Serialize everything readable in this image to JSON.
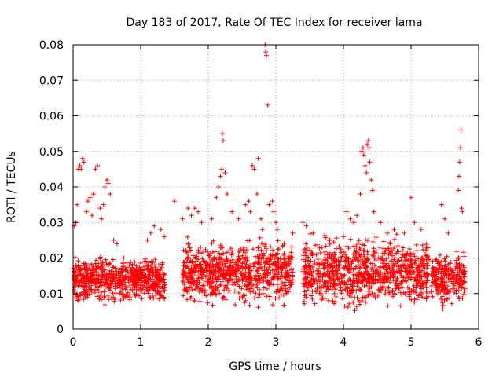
{
  "chart_data": {
    "type": "scatter",
    "title": "Day 183 of 2017, Rate Of TEC Index for receiver lama",
    "xlabel": "GPS time / hours",
    "ylabel": "ROTI / TECUs",
    "xlim": [
      0,
      6
    ],
    "ylim": [
      0,
      0.08
    ],
    "x_ticks": [
      0,
      1,
      2,
      3,
      4,
      5,
      6
    ],
    "x_tick_labels": [
      "0",
      "1",
      "2",
      "3",
      "4",
      "5",
      "6"
    ],
    "y_ticks": [
      0,
      0.01,
      0.02,
      0.03,
      0.04,
      0.05,
      0.06,
      0.07,
      0.08
    ],
    "y_tick_labels": [
      "0",
      "0.01",
      "0.02",
      "0.03",
      "0.04",
      "0.05",
      "0.06",
      "0.07",
      "0.08"
    ],
    "grid": true,
    "marker": "+",
    "series": [
      {
        "name": "ROTI",
        "color": "#ff0000",
        "band_segments": [
          {
            "x_range": [
              0.0,
              1.36
            ],
            "y_range": [
              0.006,
              0.022
            ]
          },
          {
            "x_range": [
              1.62,
              3.25
            ],
            "y_range": [
              0.005,
              0.027
            ]
          },
          {
            "x_range": [
              3.4,
              5.27
            ],
            "y_range": [
              0.004,
              0.028
            ]
          },
          {
            "x_range": [
              5.3,
              5.8
            ],
            "y_range": [
              0.005,
              0.024
            ]
          }
        ],
        "points": [
          [
            0.02,
            0.029
          ],
          [
            0.04,
            0.03
          ],
          [
            0.06,
            0.035
          ],
          [
            0.08,
            0.045
          ],
          [
            0.1,
            0.046
          ],
          [
            0.12,
            0.045
          ],
          [
            0.14,
            0.048
          ],
          [
            0.16,
            0.047
          ],
          [
            0.2,
            0.033
          ],
          [
            0.22,
            0.036
          ],
          [
            0.25,
            0.037
          ],
          [
            0.28,
            0.032
          ],
          [
            0.3,
            0.038
          ],
          [
            0.33,
            0.045
          ],
          [
            0.36,
            0.046
          ],
          [
            0.4,
            0.034
          ],
          [
            0.42,
            0.031
          ],
          [
            0.45,
            0.035
          ],
          [
            0.47,
            0.04
          ],
          [
            0.5,
            0.042
          ],
          [
            0.52,
            0.041
          ],
          [
            0.55,
            0.038
          ],
          [
            0.6,
            0.025
          ],
          [
            0.65,
            0.024
          ],
          [
            1.1,
            0.025
          ],
          [
            1.15,
            0.027
          ],
          [
            1.2,
            0.029
          ],
          [
            1.3,
            0.028
          ],
          [
            1.35,
            0.026
          ],
          [
            1.5,
            0.036
          ],
          [
            1.62,
            0.031
          ],
          [
            1.7,
            0.034
          ],
          [
            1.75,
            0.032
          ],
          [
            1.8,
            0.034
          ],
          [
            1.85,
            0.033
          ],
          [
            1.9,
            0.03
          ],
          [
            2.05,
            0.031
          ],
          [
            2.12,
            0.037
          ],
          [
            2.15,
            0.04
          ],
          [
            2.18,
            0.043
          ],
          [
            2.2,
            0.045
          ],
          [
            2.21,
            0.055
          ],
          [
            2.22,
            0.053
          ],
          [
            2.25,
            0.044
          ],
          [
            2.28,
            0.038
          ],
          [
            2.35,
            0.033
          ],
          [
            2.45,
            0.031
          ],
          [
            2.55,
            0.035
          ],
          [
            2.6,
            0.036
          ],
          [
            2.62,
            0.033
          ],
          [
            2.65,
            0.046
          ],
          [
            2.68,
            0.045
          ],
          [
            2.72,
            0.038
          ],
          [
            2.74,
            0.048
          ],
          [
            2.78,
            0.031
          ],
          [
            2.8,
            0.028
          ],
          [
            2.84,
            0.08
          ],
          [
            2.85,
            0.078
          ],
          [
            2.86,
            0.077
          ],
          [
            2.88,
            0.063
          ],
          [
            2.9,
            0.035
          ],
          [
            2.95,
            0.036
          ],
          [
            2.97,
            0.033
          ],
          [
            3.0,
            0.03
          ],
          [
            3.02,
            0.028
          ],
          [
            3.25,
            0.027
          ],
          [
            3.4,
            0.03
          ],
          [
            3.45,
            0.029
          ],
          [
            3.55,
            0.027
          ],
          [
            4.0,
            0.026
          ],
          [
            4.05,
            0.033
          ],
          [
            4.1,
            0.031
          ],
          [
            4.15,
            0.03
          ],
          [
            4.2,
            0.032
          ],
          [
            4.25,
            0.038
          ],
          [
            4.27,
            0.05
          ],
          [
            4.29,
            0.051
          ],
          [
            4.3,
            0.049
          ],
          [
            4.32,
            0.046
          ],
          [
            4.34,
            0.044
          ],
          [
            4.35,
            0.052
          ],
          [
            4.37,
            0.053
          ],
          [
            4.38,
            0.051
          ],
          [
            4.39,
            0.047
          ],
          [
            4.41,
            0.042
          ],
          [
            4.43,
            0.039
          ],
          [
            4.45,
            0.033
          ],
          [
            4.55,
            0.03
          ],
          [
            4.65,
            0.027
          ],
          [
            4.75,
            0.028
          ],
          [
            4.9,
            0.027
          ],
          [
            5.0,
            0.037
          ],
          [
            5.05,
            0.03
          ],
          [
            5.15,
            0.028
          ],
          [
            5.45,
            0.035
          ],
          [
            5.5,
            0.031
          ],
          [
            5.55,
            0.027
          ],
          [
            5.7,
            0.039
          ],
          [
            5.71,
            0.043
          ],
          [
            5.72,
            0.047
          ],
          [
            5.73,
            0.051
          ],
          [
            5.74,
            0.056
          ],
          [
            5.75,
            0.034
          ],
          [
            5.76,
            0.033
          ]
        ]
      }
    ]
  }
}
